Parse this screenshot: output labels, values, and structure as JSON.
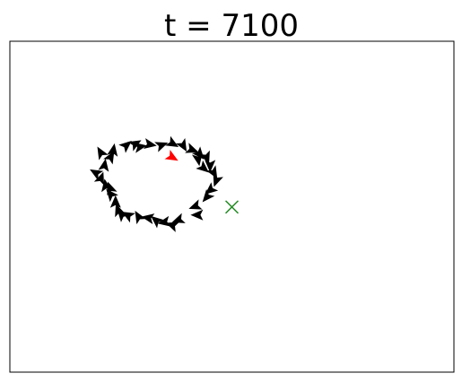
{
  "chart_data": {
    "type": "scatter",
    "title": "t = 7100",
    "xlabel": "",
    "ylabel": "",
    "xlim": [
      0,
      1
    ],
    "ylim": [
      0,
      1
    ],
    "grid": false,
    "ticks": false,
    "series": [
      {
        "marker": "arrowhead",
        "color": "#000000",
        "points": [
          {
            "x": 0.205,
            "y": 0.663,
            "a": 120
          },
          {
            "x": 0.233,
            "y": 0.67,
            "a": 80
          },
          {
            "x": 0.262,
            "y": 0.685,
            "a": 40
          },
          {
            "x": 0.293,
            "y": 0.681,
            "a": 10
          },
          {
            "x": 0.315,
            "y": 0.688,
            "a": 350
          },
          {
            "x": 0.341,
            "y": 0.686,
            "a": 20
          },
          {
            "x": 0.366,
            "y": 0.691,
            "a": 330
          },
          {
            "x": 0.39,
            "y": 0.685,
            "a": 300
          },
          {
            "x": 0.41,
            "y": 0.672,
            "a": 340
          },
          {
            "x": 0.427,
            "y": 0.659,
            "a": 310
          },
          {
            "x": 0.443,
            "y": 0.649,
            "a": 290
          },
          {
            "x": 0.451,
            "y": 0.625,
            "a": 270
          },
          {
            "x": 0.459,
            "y": 0.603,
            "a": 300
          },
          {
            "x": 0.465,
            "y": 0.58,
            "a": 250
          },
          {
            "x": 0.452,
            "y": 0.551,
            "a": 220
          },
          {
            "x": 0.418,
            "y": 0.501,
            "a": 200
          },
          {
            "x": 0.423,
            "y": 0.475,
            "a": 180
          },
          {
            "x": 0.366,
            "y": 0.444,
            "a": 160
          },
          {
            "x": 0.348,
            "y": 0.453,
            "a": 190
          },
          {
            "x": 0.33,
            "y": 0.458,
            "a": 140
          },
          {
            "x": 0.312,
            "y": 0.466,
            "a": 170
          },
          {
            "x": 0.29,
            "y": 0.469,
            "a": 120
          },
          {
            "x": 0.266,
            "y": 0.474,
            "a": 150
          },
          {
            "x": 0.244,
            "y": 0.489,
            "a": 110
          },
          {
            "x": 0.238,
            "y": 0.513,
            "a": 90
          },
          {
            "x": 0.227,
            "y": 0.537,
            "a": 130
          },
          {
            "x": 0.216,
            "y": 0.563,
            "a": 100
          },
          {
            "x": 0.205,
            "y": 0.585,
            "a": 70
          },
          {
            "x": 0.194,
            "y": 0.602,
            "a": 150
          },
          {
            "x": 0.213,
            "y": 0.624,
            "a": 80
          },
          {
            "x": 0.227,
            "y": 0.65,
            "a": 60
          },
          {
            "x": 0.282,
            "y": 0.69,
            "a": 30
          },
          {
            "x": 0.436,
            "y": 0.617,
            "a": 320
          },
          {
            "x": 0.444,
            "y": 0.53,
            "a": 230
          },
          {
            "x": 0.38,
            "y": 0.46,
            "a": 200
          },
          {
            "x": 0.252,
            "y": 0.476,
            "a": 130
          },
          {
            "x": 0.226,
            "y": 0.555,
            "a": 110
          },
          {
            "x": 0.424,
            "y": 0.644,
            "a": 280
          }
        ]
      },
      {
        "marker": "arrowhead",
        "color": "#ff0000",
        "points": [
          {
            "x": 0.365,
            "y": 0.65,
            "a": 330
          }
        ]
      },
      {
        "marker": "x",
        "color": "#228b22",
        "points": [
          {
            "x": 0.5,
            "y": 0.499
          }
        ]
      }
    ]
  }
}
